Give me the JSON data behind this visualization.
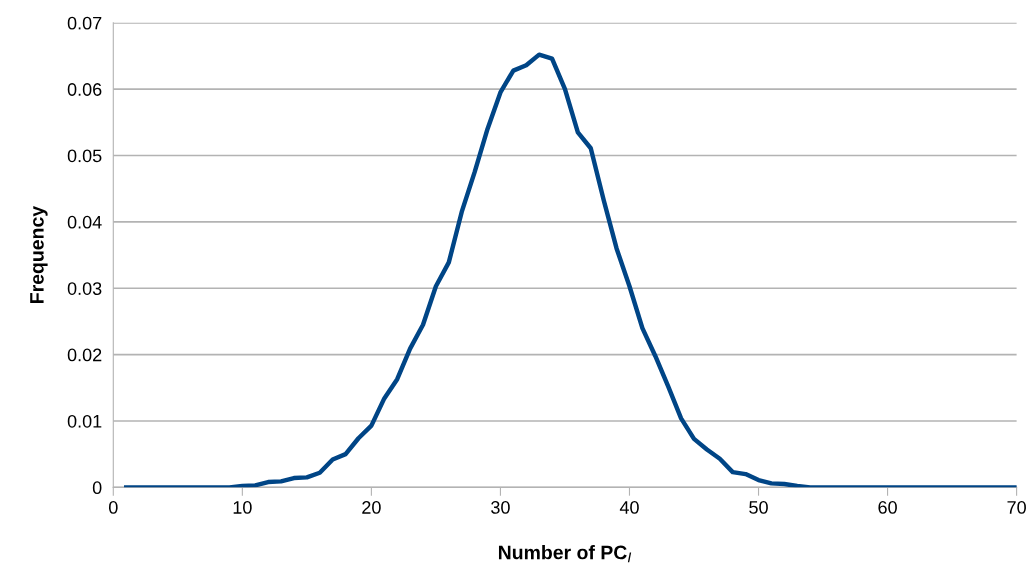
{
  "chart_data": {
    "type": "line",
    "xlabel": "Number of PC$_{I}$",
    "ylabel": "Frequency",
    "x": [
      1,
      2,
      3,
      4,
      5,
      6,
      7,
      8,
      9,
      10,
      11,
      12,
      13,
      14,
      15,
      16,
      17,
      18,
      19,
      20,
      21,
      22,
      23,
      24,
      25,
      26,
      27,
      28,
      29,
      30,
      31,
      32,
      33,
      34,
      35,
      36,
      37,
      38,
      39,
      40,
      41,
      42,
      43,
      44,
      45,
      46,
      47,
      48,
      49,
      50,
      51,
      52,
      53,
      54,
      55,
      56,
      57,
      58,
      59,
      60,
      61,
      62,
      63,
      64,
      65,
      66,
      67,
      68,
      69,
      70
    ],
    "series": [
      {
        "color": "#004586",
        "values": [
          0,
          0,
          0,
          0,
          0,
          0,
          0,
          0,
          0,
          0.0002,
          0.0003,
          0.0008,
          0.0009,
          0.0014,
          0.0015,
          0.0022,
          0.0042,
          0.005,
          0.0074,
          0.0093,
          0.0134,
          0.0163,
          0.0209,
          0.0245,
          0.0303,
          0.0339,
          0.0415,
          0.0475,
          0.054,
          0.0595,
          0.0628,
          0.0636,
          0.0652,
          0.0646,
          0.06,
          0.0535,
          0.0511,
          0.0433,
          0.036,
          0.0303,
          0.024,
          0.0198,
          0.0152,
          0.0104,
          0.0073,
          0.0057,
          0.0043,
          0.0023,
          0.002,
          0.0011,
          0.0006,
          0.0005,
          0.0002,
          0,
          0,
          0,
          0,
          0,
          0,
          0,
          0,
          0,
          0,
          0,
          0,
          0,
          0,
          0,
          0,
          0
        ]
      }
    ],
    "xlim": [
      0,
      70
    ],
    "xticks": [
      0,
      10,
      20,
      30,
      40,
      50,
      60,
      70
    ],
    "ylim": [
      0,
      0.07
    ],
    "yticks": [
      0,
      0.01,
      0.02,
      0.03,
      0.04,
      0.05,
      0.06,
      0.07
    ],
    "grid": "y",
    "legend": false,
    "marker": "none",
    "line_style": "solid"
  }
}
